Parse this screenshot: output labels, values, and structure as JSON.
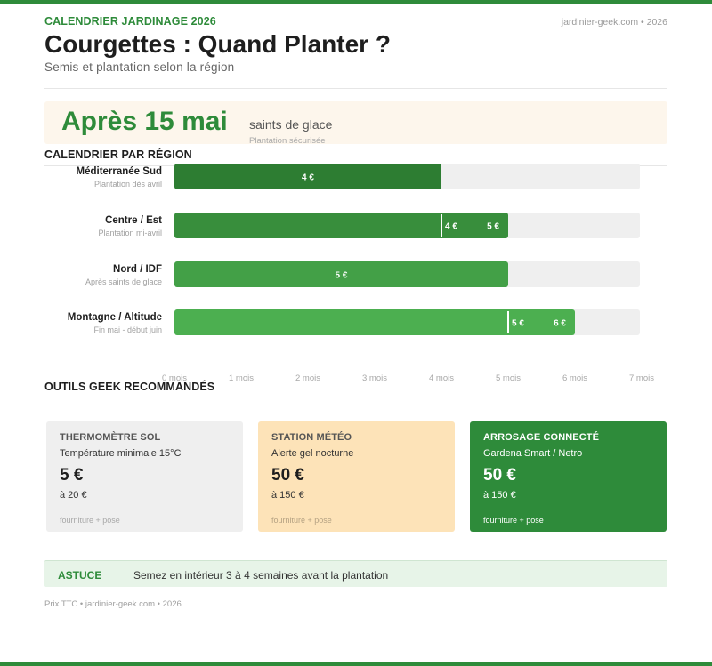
{
  "header": {
    "kicker": "CALENDRIER JARDINAGE 2026",
    "site": "jardinier-geek.com • 2026",
    "title": "Courgettes : Quand Planter ?",
    "subtitle": "Semis et plantation selon la région"
  },
  "hero": {
    "headline": "Après 15 mai",
    "side": "saints de glace",
    "note": "Plantation sécurisée"
  },
  "sections": {
    "calendar": "CALENDRIER PAR RÉGION",
    "tools": "OUTILS GEEK RECOMMANDÉS"
  },
  "chart_data": {
    "type": "bar",
    "orientation": "horizontal",
    "title": "",
    "xlabel": "",
    "ylabel": "",
    "xlim": [
      0,
      7
    ],
    "x_ticks": [
      "0 mois",
      "1 mois",
      "2 mois",
      "3 mois",
      "4 mois",
      "5 mois",
      "6 mois",
      "7 mois"
    ],
    "grid": false,
    "colors": {
      "track": "#efefef",
      "bars": [
        "#2d7d32",
        "#388e3c",
        "#43a047",
        "#4caf50"
      ],
      "marker": "#ffffff"
    },
    "categories": [
      "Méditerranée Sud",
      "Centre / Est",
      "Nord / IDF",
      "Montagne / Altitude"
    ],
    "notes": [
      "Plantation dès avril",
      "Plantation mi-avril",
      "Après saints de glace",
      "Fin mai - début juin"
    ],
    "values": [
      4,
      5,
      5,
      6
    ],
    "markers": [
      null,
      4,
      null,
      5
    ],
    "bar_labels": [
      [
        "4 €"
      ],
      [
        "4 €",
        "5 €"
      ],
      [
        "5 €"
      ],
      [
        "5 €",
        "6 €"
      ]
    ]
  },
  "tools": [
    {
      "title": "THERMOMÈTRE SOL",
      "desc": "Température minimale 15°C",
      "price": "5 €",
      "upto": "à 20 €",
      "foot": "fourniture + pose"
    },
    {
      "title": "STATION MÉTÉO",
      "desc": "Alerte gel nocturne",
      "price": "50 €",
      "upto": "à 150 €",
      "foot": "fourniture + pose"
    },
    {
      "title": "ARROSAGE CONNECTÉ",
      "desc": "Gardena Smart / Netro",
      "price": "50 €",
      "upto": "à 150 €",
      "foot": "fourniture + pose"
    }
  ],
  "tip": {
    "label": "ASTUCE",
    "text": "Semez en intérieur 3 à 4 semaines avant la plantation"
  },
  "footer": "Prix TTC • jardinier-geek.com • 2026"
}
